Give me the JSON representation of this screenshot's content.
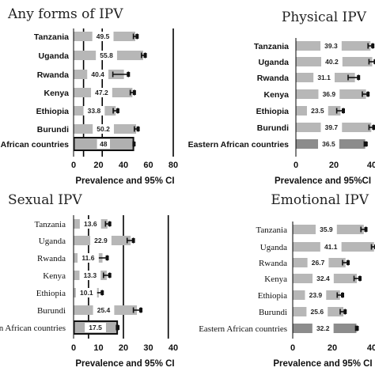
{
  "chart_data": [
    {
      "type": "bar",
      "title": "Any forms of IPV",
      "categories": [
        "Tanzania",
        "Uganda",
        "Rwanda",
        "Kenya",
        "Ethiopia",
        "Burundi",
        "n African countries"
      ],
      "values": [
        49.5,
        55.8,
        40.4,
        47.2,
        33.8,
        50.2,
        48
      ],
      "ci_low": [
        48.0,
        54.5,
        31.5,
        45.5,
        31.8,
        48.8,
        47.8
      ],
      "ci_high": [
        51.0,
        57.5,
        44.0,
        48.8,
        35.5,
        51.8,
        48.5
      ],
      "xlabel": "Prevalence and 95% CI",
      "xticks": [
        "0",
        "20",
        "40",
        "60",
        "80"
      ],
      "xlim": [
        0,
        80
      ]
    },
    {
      "type": "bar",
      "title": "Physical IPV",
      "categories": [
        "Tanzania",
        "Uganda",
        "Rwanda",
        "Kenya",
        "Ethiopia",
        "Burundi",
        "Eastern African countries"
      ],
      "values": [
        39.3,
        40.2,
        31.1,
        36.9,
        23.5,
        39.7,
        36.5
      ],
      "ci_low": [
        38.0,
        38.5,
        27.5,
        35.0,
        21.5,
        38.5,
        36.0
      ],
      "ci_high": [
        40.5,
        41.8,
        33.0,
        38.0,
        25.0,
        41.0,
        37.0
      ],
      "xlabel": "Prevalence and 95%CI",
      "xticks": [
        "0",
        "20",
        "40"
      ],
      "xlim": [
        0,
        40
      ]
    },
    {
      "type": "bar",
      "title": "Sexual IPV",
      "categories": [
        "Tanzania",
        "Uganda",
        "Rwanda",
        "Kenya",
        "Ethiopia",
        "Burundi",
        "n African countries"
      ],
      "values": [
        13.6,
        22.9,
        11.6,
        13.3,
        10.1,
        25.4,
        17.5
      ],
      "ci_low": [
        12.8,
        21.5,
        9.5,
        12.0,
        8.5,
        24.0,
        17.2
      ],
      "ci_high": [
        14.5,
        24.0,
        13.5,
        14.5,
        11.5,
        27.0,
        17.8
      ],
      "xlabel": "Prevalence and 95% CI",
      "xticks": [
        "0",
        "10",
        "20",
        "30",
        "40"
      ],
      "xlim": [
        0,
        40
      ]
    },
    {
      "type": "bar",
      "title": "Emotional IPV",
      "categories": [
        "Tanzania",
        "Uganda",
        "Rwanda",
        "Kenya",
        "Ethiopia",
        "Burundi",
        "Eastern African countries"
      ],
      "values": [
        35.9,
        41.1,
        26.7,
        32.4,
        23.9,
        25.6,
        32.2
      ],
      "ci_low": [
        34.5,
        39.8,
        25.2,
        31.0,
        22.5,
        24.0,
        31.8
      ],
      "ci_high": [
        37.0,
        42.0,
        28.0,
        34.0,
        25.2,
        26.5,
        32.6
      ],
      "xlabel": "Prevalence and 95% CI",
      "xticks": [
        "0",
        "20",
        "40"
      ],
      "xlim": [
        0,
        40
      ]
    }
  ],
  "colors": {
    "bar": "#b7b7b7",
    "bar_total": "#8c8c8c",
    "bar_total_outlined": "#b0b0b0",
    "axis": "#000000",
    "label_box": "#ffffff"
  }
}
